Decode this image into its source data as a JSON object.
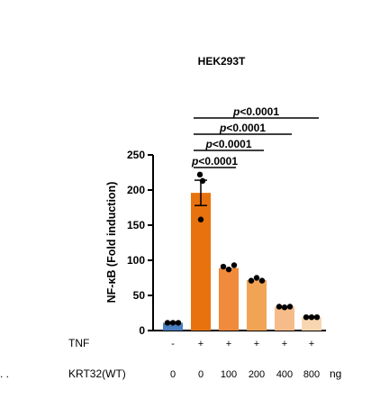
{
  "chart_data": {
    "type": "bar",
    "title": "HEK293T",
    "ylabel": "NF-κB (Fold induction)",
    "ylim": [
      0,
      250
    ],
    "yticks": [
      "0",
      "50",
      "100",
      "150",
      "200",
      "250"
    ],
    "yticks_values": [
      0,
      50,
      100,
      150,
      200,
      250
    ],
    "categories": [
      "1",
      "2",
      "3",
      "4",
      "5",
      "6"
    ],
    "values": [
      11,
      196,
      89,
      72,
      34,
      19
    ],
    "error": [
      0,
      18,
      0,
      0,
      0,
      0
    ],
    "points": [
      [
        11,
        11,
        11
      ],
      [
        222,
        213,
        158
      ],
      [
        91,
        87,
        93
      ],
      [
        71,
        75,
        71
      ],
      [
        34,
        33,
        34
      ],
      [
        19,
        19,
        19
      ]
    ],
    "colors": [
      "#4a7fc0",
      "#e8730e",
      "#f08a3c",
      "#f2a455",
      "#f5bc8a",
      "#f8d6b0"
    ],
    "conditions": [
      {
        "label": "TNF",
        "values": [
          "-",
          "+",
          "+",
          "+",
          "+",
          "+"
        ]
      },
      {
        "label": "KRT32(WT)",
        "values": [
          "0",
          "0",
          "100",
          "200",
          "400",
          "800"
        ],
        "unit": "ng"
      }
    ],
    "significance": [
      {
        "from": 1,
        "to": 2,
        "label": "p<0.0001",
        "p_prefix": "p",
        "p_rest": "<0.0001"
      },
      {
        "from": 1,
        "to": 3,
        "label": "p<0.0001",
        "p_prefix": "p",
        "p_rest": "<0.0001"
      },
      {
        "from": 1,
        "to": 4,
        "label": "p<0.0001",
        "p_prefix": "p",
        "p_rest": "<0.0001"
      },
      {
        "from": 1,
        "to": 5,
        "label": "p<0.0001",
        "p_prefix": "p",
        "p_rest": "<0.0001"
      }
    ],
    "left_marker": ". ."
  }
}
